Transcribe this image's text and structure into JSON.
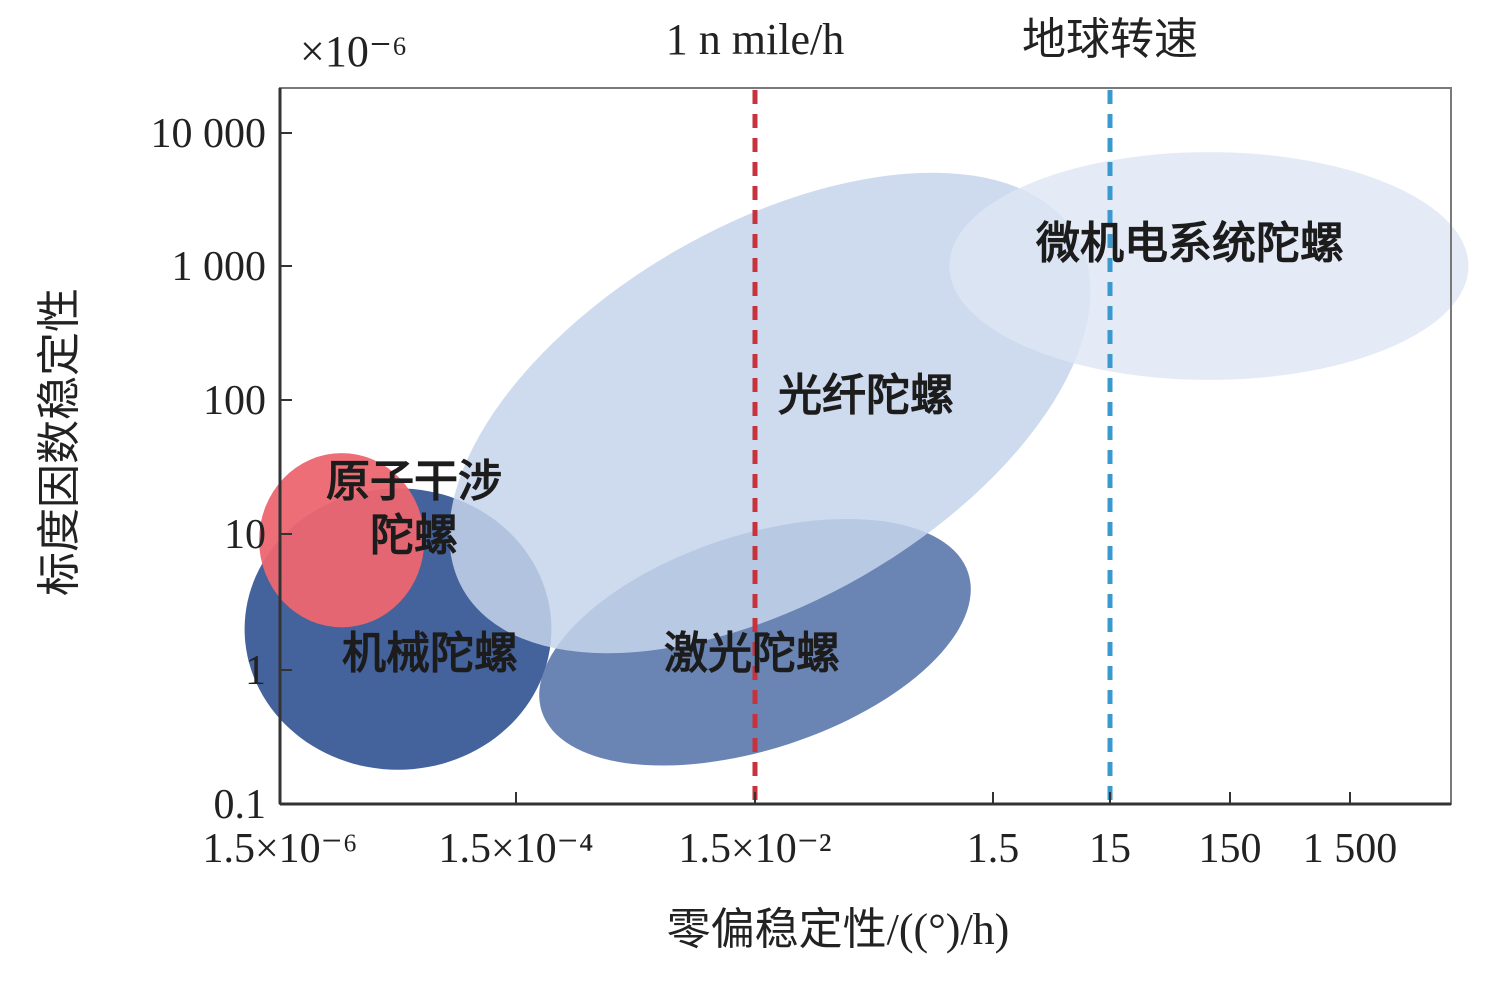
{
  "chart_data": {
    "type": "scatter",
    "subtype": "region-ellipses",
    "x_scale": "log",
    "y_scale": "log",
    "xlabel": "零偏稳定性/((°)/h)",
    "ylabel": "标度因数稳定性",
    "y_multiplier": "×10⁻⁶",
    "xlim": [
      1.5e-06,
      15000
    ],
    "ylim": [
      0.1,
      30000
    ],
    "x_ticks": [
      {
        "value": 1.5e-06,
        "label": "1.5×10⁻⁶"
      },
      {
        "value": 0.00015,
        "label": "1.5×10⁻⁴"
      },
      {
        "value": 0.015,
        "label": "1.5×10⁻²"
      },
      {
        "value": 1.5,
        "label": "1.5"
      },
      {
        "value": 15,
        "label": "15"
      },
      {
        "value": 150,
        "label": "150"
      },
      {
        "value": 1500,
        "label": "1 500"
      }
    ],
    "y_ticks": [
      {
        "value": 0.1,
        "label": "0.1"
      },
      {
        "value": 1,
        "label": "1"
      },
      {
        "value": 10,
        "label": "10"
      },
      {
        "value": 100,
        "label": "100"
      },
      {
        "value": 1000,
        "label": "1 000"
      },
      {
        "value": 10000,
        "label": "10 000"
      }
    ],
    "reference_lines": [
      {
        "name": "1 n mile/h",
        "x": 0.015,
        "color": "#c8323c"
      },
      {
        "name": "地球转速",
        "x": 15,
        "color": "#3a9ad0"
      }
    ],
    "regions": [
      {
        "name": "机械陀螺",
        "x_center": 1.5e-05,
        "y_center": 2.0,
        "x_decades": 2.6,
        "y_decades": 2.1,
        "rotation_deg": 0,
        "color": "#3a5a96",
        "opacity": 0.95
      },
      {
        "name": "激光陀螺",
        "x_center": 0.015,
        "y_center": 1.6,
        "x_decades": 3.8,
        "y_decades": 1.6,
        "rotation_deg": -18,
        "color": "#5a78ac",
        "opacity": 0.9
      },
      {
        "name": "原子干涉陀螺",
        "x_center": 5e-06,
        "y_center": 9.0,
        "x_decades": 1.4,
        "y_decades": 1.3,
        "rotation_deg": 0,
        "color": "#ec6670",
        "opacity": 0.95
      },
      {
        "name": "光纤陀螺",
        "x_center": 0.02,
        "y_center": 80,
        "x_decades": 6.0,
        "y_decades": 2.8,
        "rotation_deg": -30,
        "color": "#c6d5ec",
        "opacity": 0.85
      },
      {
        "name": "微机电系统陀螺",
        "x_center": 100,
        "y_center": 1000,
        "x_decades": 4.4,
        "y_decades": 1.7,
        "rotation_deg": 0,
        "color": "#dde6f4",
        "opacity": 0.8
      }
    ]
  }
}
